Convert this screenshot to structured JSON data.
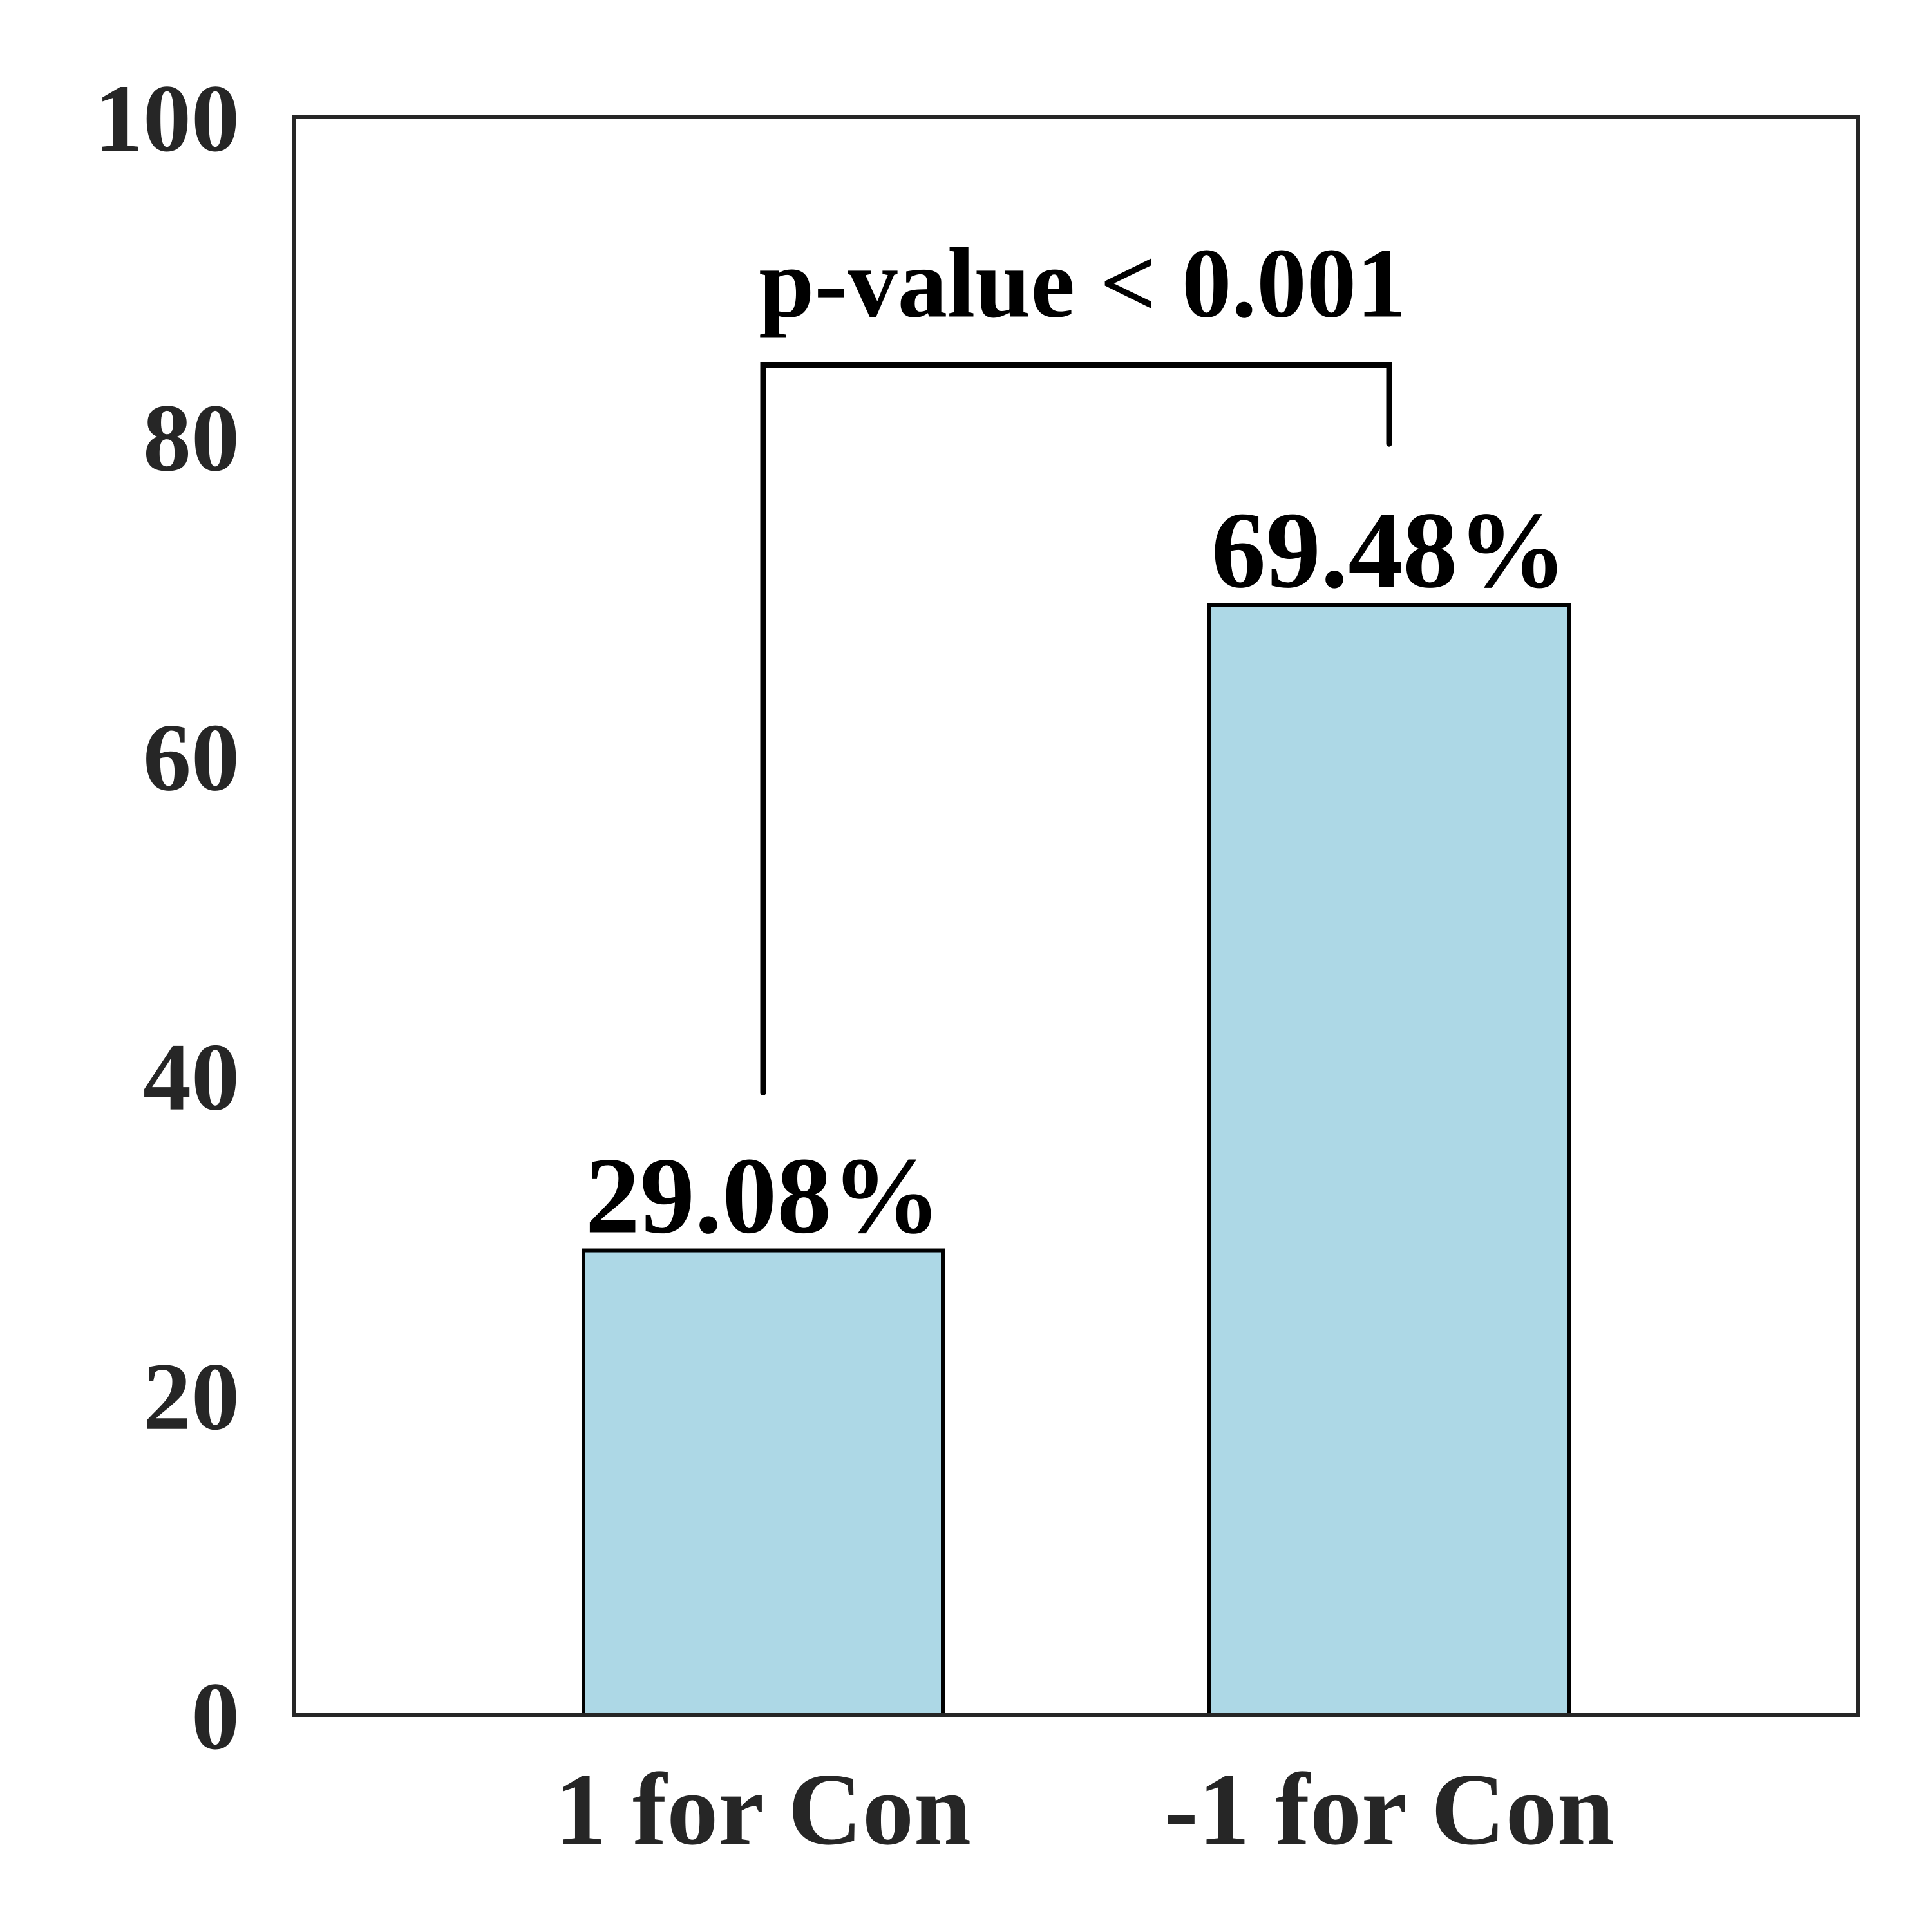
{
  "chart_data": {
    "type": "bar",
    "categories": [
      "1 for Con",
      "-1 for Con"
    ],
    "values": [
      29.08,
      69.48
    ],
    "value_labels": [
      "29.08%",
      "69.48%"
    ],
    "ylim": [
      0,
      100
    ],
    "yticks": [
      0,
      20,
      40,
      60,
      80,
      100
    ],
    "ytick_labels": [
      "0",
      "20",
      "40",
      "60",
      "80",
      "100"
    ],
    "grid": false,
    "bar_color": "#ADD8E6",
    "bar_edge_color": "#000000",
    "frame_color": "#262626",
    "annotation": {
      "text": "p-value < 0.001",
      "between": [
        "1 for Con",
        "-1 for Con"
      ]
    }
  }
}
